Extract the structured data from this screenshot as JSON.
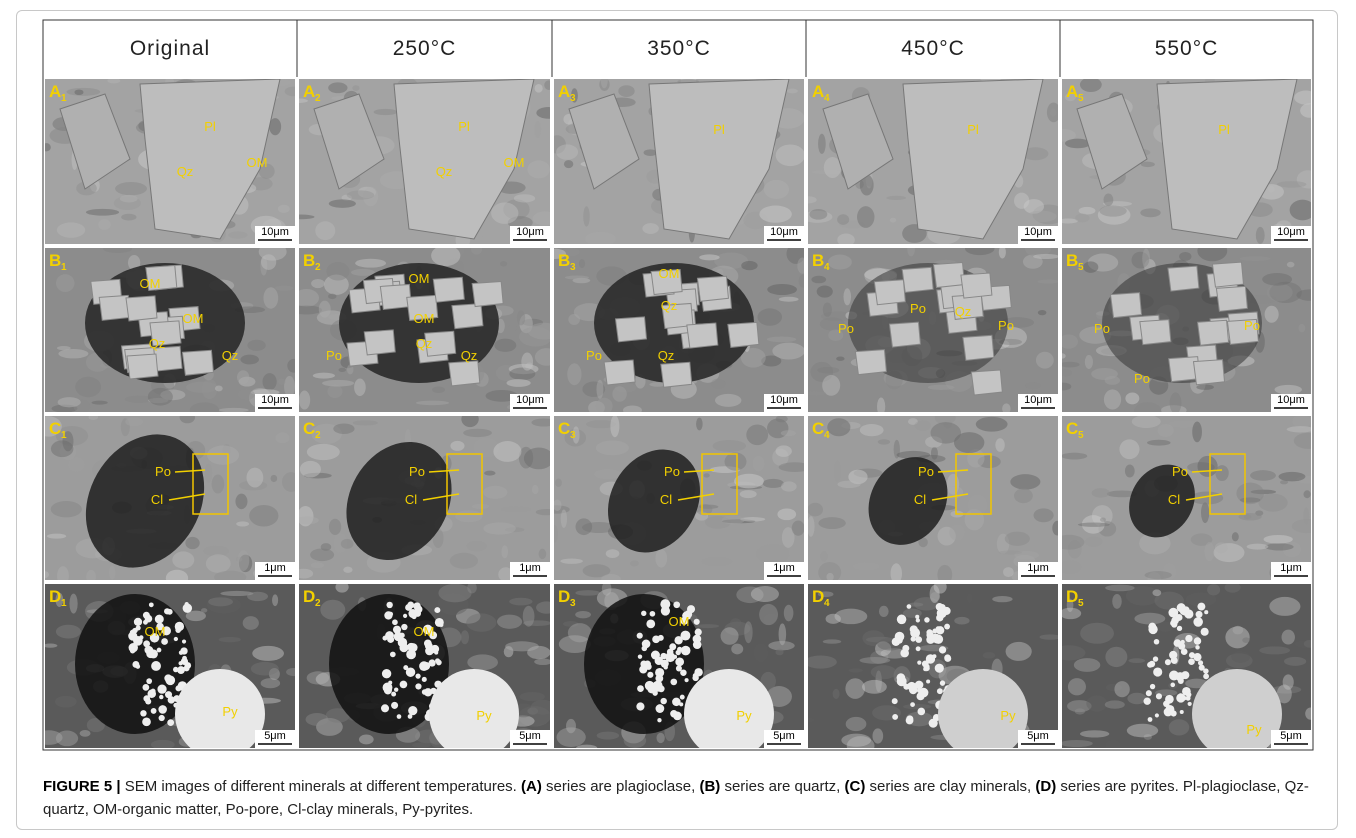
{
  "figure": {
    "columns": [
      "Original",
      "250°C",
      "350°C",
      "450°C",
      "550°C"
    ],
    "rows": [
      {
        "scale": "10μm",
        "panels": [
          {
            "letter": "A",
            "sub": "1",
            "labels": [
              "Pl",
              "Qz",
              "OM"
            ]
          },
          {
            "letter": "A",
            "sub": "2",
            "labels": [
              "Pl",
              "Qz",
              "OM"
            ]
          },
          {
            "letter": "A",
            "sub": "3",
            "labels": [
              "Pl"
            ]
          },
          {
            "letter": "A",
            "sub": "4",
            "labels": [
              "Pl"
            ]
          },
          {
            "letter": "A",
            "sub": "5",
            "labels": [
              "Pl"
            ]
          }
        ]
      },
      {
        "scale": "10μm",
        "panels": [
          {
            "letter": "B",
            "sub": "1",
            "labels": [
              "OM",
              "OM",
              "Qz",
              "Qz"
            ]
          },
          {
            "letter": "B",
            "sub": "2",
            "labels": [
              "OM",
              "OM",
              "Qz",
              "Qz",
              "Po"
            ]
          },
          {
            "letter": "B",
            "sub": "3",
            "labels": [
              "OM",
              "Qz",
              "Qz",
              "Po"
            ]
          },
          {
            "letter": "B",
            "sub": "4",
            "labels": [
              "Po",
              "Po",
              "Qz",
              "Po"
            ]
          },
          {
            "letter": "B",
            "sub": "5",
            "labels": [
              "Po",
              "Po",
              "Po"
            ]
          }
        ]
      },
      {
        "scale": "1μm",
        "panels": [
          {
            "letter": "C",
            "sub": "1",
            "labels": [
              "Po",
              "Cl"
            ]
          },
          {
            "letter": "C",
            "sub": "2",
            "labels": [
              "Po",
              "Cl"
            ]
          },
          {
            "letter": "C",
            "sub": "3",
            "labels": [
              "Po",
              "Cl"
            ]
          },
          {
            "letter": "C",
            "sub": "4",
            "labels": [
              "Po",
              "Cl"
            ]
          },
          {
            "letter": "C",
            "sub": "5",
            "labels": [
              "Po",
              "Cl"
            ]
          }
        ]
      },
      {
        "scale": "5μm",
        "panels": [
          {
            "letter": "D",
            "sub": "1",
            "labels": [
              "OM",
              "Py"
            ]
          },
          {
            "letter": "D",
            "sub": "2",
            "labels": [
              "OM",
              "Py"
            ]
          },
          {
            "letter": "D",
            "sub": "3",
            "labels": [
              "OM",
              "Py"
            ]
          },
          {
            "letter": "D",
            "sub": "4",
            "labels": [
              "Py"
            ]
          },
          {
            "letter": "D",
            "sub": "5",
            "labels": [
              "Py"
            ]
          }
        ]
      }
    ]
  },
  "caption": [
    {
      "text": "FIGURE 5 | ",
      "bold": true
    },
    {
      "text": "SEM images of different minerals at different temperatures. ",
      "bold": false
    },
    {
      "text": "(A)",
      "bold": true
    },
    {
      "text": " series are plagioclase, ",
      "bold": false
    },
    {
      "text": "(B)",
      "bold": true
    },
    {
      "text": " series are quartz, ",
      "bold": false
    },
    {
      "text": "(C)",
      "bold": true
    },
    {
      "text": " series are clay minerals, ",
      "bold": false
    },
    {
      "text": "(D)",
      "bold": true
    },
    {
      "text": " series are pyrites. Pl-plagioclase, Qz-quartz, OM-organic matter, Po-pore, Cl-clay minerals, Py-pyrites.",
      "bold": false
    }
  ]
}
